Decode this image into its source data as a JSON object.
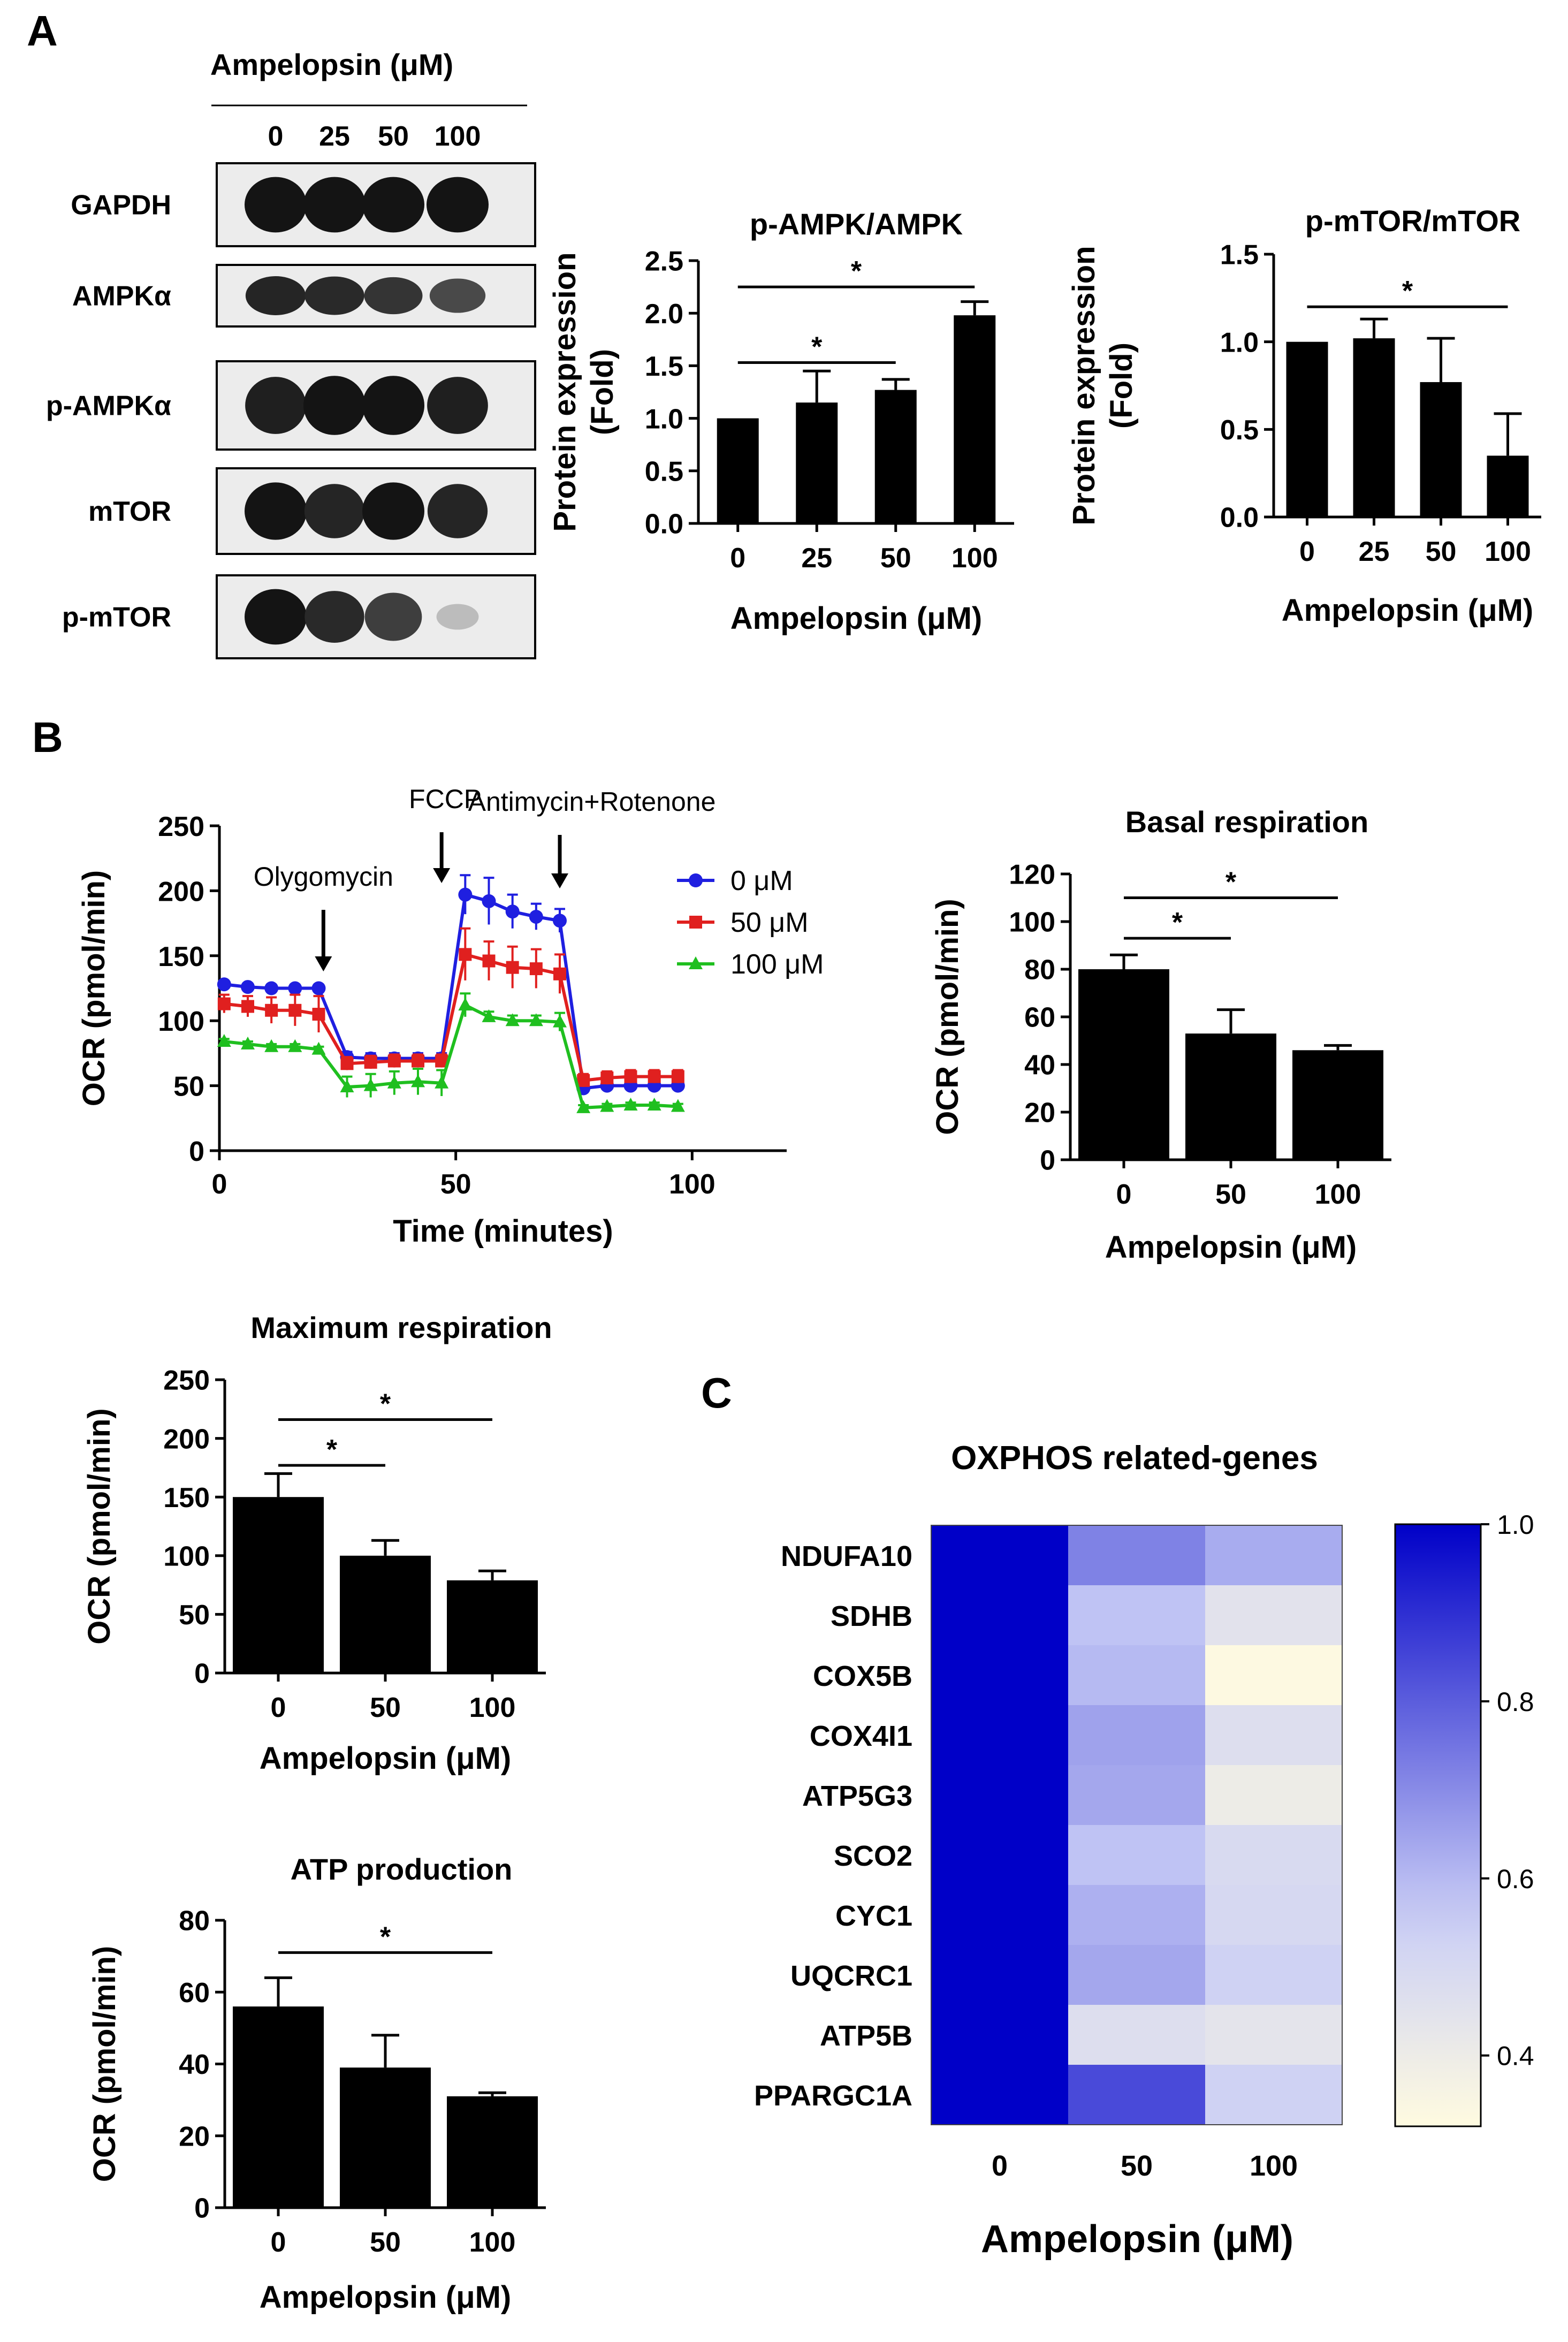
{
  "panel_labels": {
    "a": "A",
    "b": "B",
    "c": "C"
  },
  "western_blot": {
    "header": "Ampelopsin (μM)",
    "lanes": [
      "0",
      "25",
      "50",
      "100"
    ],
    "bands": [
      {
        "label": "GAPDH",
        "intensity": [
          1.0,
          1.0,
          1.0,
          1.0
        ]
      },
      {
        "label": "AMPKα",
        "intensity": [
          0.92,
          0.9,
          0.85,
          0.75
        ]
      },
      {
        "label": "p-AMPKα",
        "intensity": [
          0.95,
          1.0,
          1.0,
          0.95
        ]
      },
      {
        "label": "mTOR",
        "intensity": [
          1.0,
          0.92,
          1.0,
          0.92
        ]
      },
      {
        "label": "p-mTOR",
        "intensity": [
          1.0,
          0.9,
          0.8,
          0.2
        ]
      }
    ]
  },
  "chart_data": [
    {
      "id": "pampk",
      "type": "bar",
      "title": "p-AMPK/AMPK",
      "xlabel": "Ampelopsin (μM)",
      "ylabel": "Protein expression (Fold)",
      "categories": [
        "0",
        "25",
        "50",
        "100"
      ],
      "values": [
        1.0,
        1.15,
        1.27,
        1.98
      ],
      "errors": [
        0,
        0.3,
        0.1,
        0.13
      ],
      "ylim": [
        0,
        2.5
      ],
      "yticks": [
        0,
        0.5,
        1.0,
        1.5,
        2.0,
        2.5
      ],
      "ytick_labels": [
        "0.0",
        "0.5",
        "1.0",
        "1.5",
        "2.0",
        "2.5"
      ],
      "significance": [
        {
          "from": 0,
          "to": 2,
          "label": "*",
          "y": 1.53
        },
        {
          "from": 0,
          "to": 3,
          "label": "*",
          "y": 2.25
        }
      ]
    },
    {
      "id": "pmtor",
      "type": "bar",
      "title": "p-mTOR/mTOR",
      "xlabel": "Ampelopsin (μM)",
      "ylabel": "Protein expression (Fold)",
      "categories": [
        "0",
        "25",
        "50",
        "100"
      ],
      "values": [
        1.0,
        1.02,
        0.77,
        0.35
      ],
      "errors": [
        0,
        0.11,
        0.25,
        0.24
      ],
      "ylim": [
        0,
        1.5
      ],
      "yticks": [
        0,
        0.5,
        1.0,
        1.5
      ],
      "ytick_labels": [
        "0.0",
        "0.5",
        "1.0",
        "1.5"
      ],
      "significance": [
        {
          "from": 0,
          "to": 3,
          "label": "*",
          "y": 1.2
        }
      ]
    },
    {
      "id": "ocr",
      "type": "line",
      "xlabel": "Time (minutes)",
      "ylabel": "OCR (pmol/min)",
      "xlim": [
        0,
        120
      ],
      "ylim": [
        0,
        250
      ],
      "xticks": [
        0,
        50,
        100
      ],
      "yticks": [
        0,
        50,
        100,
        150,
        200,
        250
      ],
      "x": [
        1,
        6,
        11,
        16,
        21,
        27,
        32,
        37,
        42,
        47,
        52,
        57,
        62,
        67,
        72,
        77,
        82,
        87,
        92,
        97
      ],
      "series": [
        {
          "name": "0 μM",
          "color": "#1f1fe0",
          "marker": "circle",
          "values": [
            128,
            126,
            125,
            125,
            125,
            72,
            71,
            71,
            71,
            71,
            197,
            192,
            184,
            180,
            177,
            48,
            50,
            50,
            50,
            50
          ],
          "errors": [
            2,
            2,
            2,
            2,
            2,
            4,
            4,
            4,
            4,
            4,
            15,
            18,
            13,
            10,
            9,
            3,
            3,
            3,
            3,
            3
          ]
        },
        {
          "name": "50 μM",
          "color": "#e0201f",
          "marker": "square",
          "values": [
            113,
            111,
            108,
            108,
            105,
            67,
            68,
            69,
            69,
            69,
            151,
            146,
            141,
            140,
            136,
            54,
            56,
            57,
            57,
            57
          ],
          "errors": [
            7,
            8,
            10,
            12,
            14,
            5,
            5,
            5,
            5,
            5,
            20,
            15,
            16,
            15,
            15,
            5,
            5,
            5,
            5,
            5
          ]
        },
        {
          "name": "100 μM",
          "color": "#1fbf1f",
          "marker": "triangle",
          "values": [
            84,
            82,
            80,
            80,
            78,
            49,
            50,
            52,
            53,
            52,
            112,
            103,
            100,
            100,
            99,
            33,
            34,
            35,
            35,
            34
          ],
          "errors": [
            2,
            2,
            2,
            2,
            2,
            8,
            9,
            9,
            10,
            10,
            9,
            4,
            4,
            4,
            7,
            2,
            2,
            2,
            2,
            2
          ]
        }
      ],
      "annotations": [
        {
          "label": "Olygomycin",
          "x": 22
        },
        {
          "label": "FCCP",
          "x": 47
        },
        {
          "label": "Antimycin+Rotenone",
          "x": 72
        }
      ],
      "legend": "top-right"
    },
    {
      "id": "basal",
      "type": "bar",
      "title": "Basal respiration",
      "xlabel": "Ampelopsin (μM)",
      "ylabel": "OCR (pmol/min)",
      "categories": [
        "0",
        "50",
        "100"
      ],
      "values": [
        80,
        53,
        46
      ],
      "errors": [
        6,
        10,
        2
      ],
      "ylim": [
        0,
        120
      ],
      "yticks": [
        0,
        20,
        40,
        60,
        80,
        100,
        120
      ],
      "ytick_labels": [
        "0",
        "20",
        "40",
        "60",
        "80",
        "100",
        "120"
      ],
      "significance": [
        {
          "from": 0,
          "to": 1,
          "label": "*",
          "y": 93
        },
        {
          "from": 0,
          "to": 2,
          "label": "*",
          "y": 110
        }
      ]
    },
    {
      "id": "maxresp",
      "type": "bar",
      "title": "Maximum respiration",
      "xlabel": "Ampelopsin (μM)",
      "ylabel": "OCR (pmol/min)",
      "categories": [
        "0",
        "50",
        "100"
      ],
      "values": [
        150,
        100,
        79
      ],
      "errors": [
        20,
        13,
        8
      ],
      "ylim": [
        0,
        250
      ],
      "yticks": [
        0,
        50,
        100,
        150,
        200,
        250
      ],
      "ytick_labels": [
        "0",
        "50",
        "100",
        "150",
        "200",
        "250"
      ],
      "significance": [
        {
          "from": 0,
          "to": 1,
          "label": "*",
          "y": 177
        },
        {
          "from": 0,
          "to": 2,
          "label": "*",
          "y": 216
        }
      ]
    },
    {
      "id": "atp",
      "type": "bar",
      "title": "ATP production",
      "xlabel": "Ampelopsin (μM)",
      "ylabel": "OCR (pmol/min)",
      "categories": [
        "0",
        "50",
        "100"
      ],
      "values": [
        56,
        39,
        31
      ],
      "errors": [
        8,
        9,
        1
      ],
      "ylim": [
        0,
        80
      ],
      "yticks": [
        0,
        20,
        40,
        60,
        80
      ],
      "ytick_labels": [
        "0",
        "20",
        "40",
        "60",
        "80"
      ],
      "significance": [
        {
          "from": 0,
          "to": 2,
          "label": "*",
          "y": 71
        }
      ]
    },
    {
      "id": "heatmap",
      "type": "heatmap",
      "title": "OXPHOS related-genes",
      "xlabel": "Ampelopsin (μM)",
      "columns": [
        "0",
        "50",
        "100"
      ],
      "rows": [
        "NDUFA10",
        "SDHB",
        "COX5B",
        "COX4I1",
        "ATP5G3",
        "SCO2",
        "CYC1",
        "UQCRC1",
        "ATP5B",
        "PPARGC1A"
      ],
      "values": [
        [
          1.0,
          0.72,
          0.63
        ],
        [
          1.0,
          0.58,
          0.45
        ],
        [
          1.0,
          0.6,
          0.33
        ],
        [
          1.0,
          0.65,
          0.47
        ],
        [
          1.0,
          0.64,
          0.4
        ],
        [
          1.0,
          0.58,
          0.49
        ],
        [
          1.0,
          0.62,
          0.5
        ],
        [
          1.0,
          0.64,
          0.53
        ],
        [
          1.0,
          0.47,
          0.44
        ],
        [
          1.0,
          0.84,
          0.53
        ]
      ],
      "vmin": 0.32,
      "vmax": 1.0,
      "colorbar_ticks": [
        1.0,
        0.8,
        0.6,
        0.4
      ],
      "colorbar_labels": [
        "1.0",
        "0.8",
        "0.6",
        "0.4"
      ],
      "colors": {
        "low": "#fffbe0",
        "mid": "#c9cdf6",
        "high": "#0000c8"
      }
    }
  ]
}
